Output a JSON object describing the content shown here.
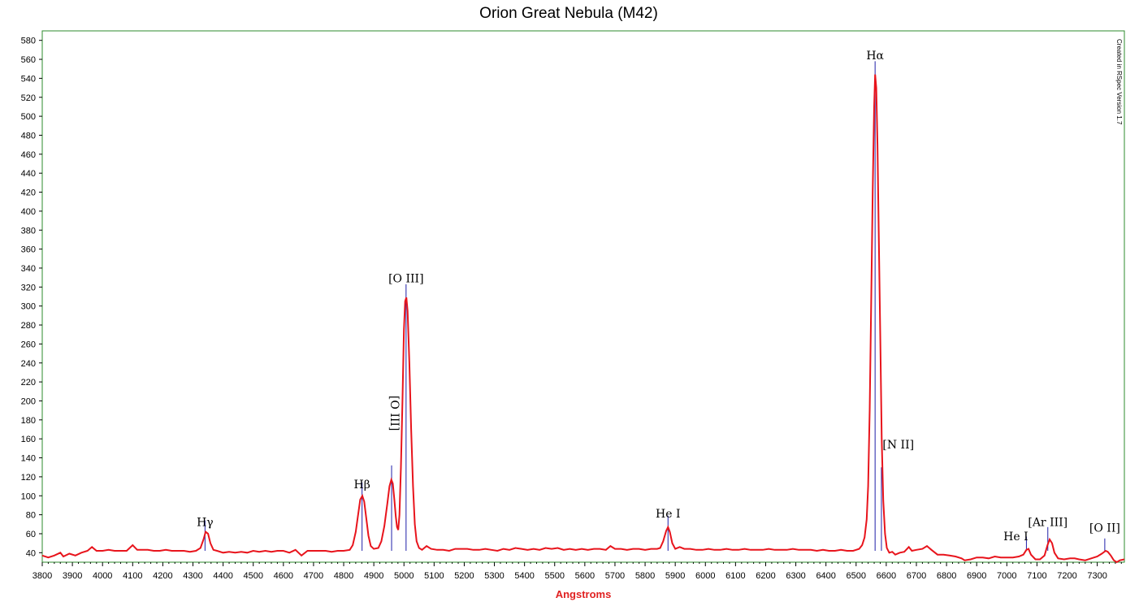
{
  "chart_data": {
    "type": "line",
    "title": "Orion Great Nebula (M42)",
    "xlabel": "Angstroms",
    "ylabel": "",
    "xlim": [
      3800,
      7390
    ],
    "ylim": [
      30,
      590
    ],
    "x_ticks": [
      3800,
      3900,
      4000,
      4100,
      4200,
      4300,
      4400,
      4500,
      4600,
      4700,
      4800,
      4900,
      5000,
      5100,
      5200,
      5300,
      5400,
      5500,
      5600,
      5700,
      5800,
      5900,
      6000,
      6100,
      6200,
      6300,
      6400,
      6500,
      6600,
      6700,
      6800,
      6900,
      7000,
      7100,
      7200,
      7300
    ],
    "y_ticks": [
      40,
      60,
      80,
      100,
      120,
      140,
      160,
      180,
      200,
      220,
      240,
      260,
      280,
      300,
      320,
      340,
      360,
      380,
      400,
      420,
      440,
      460,
      480,
      500,
      520,
      540,
      560,
      580
    ],
    "watermark": "Created in RSpec Version 1.7",
    "colors": {
      "spectrum": "#e8141c",
      "marker": "#1f1fa8",
      "frame": "#2e8b2e"
    },
    "series": [
      {
        "points": [
          [
            3800,
            37
          ],
          [
            3820,
            35
          ],
          [
            3840,
            37
          ],
          [
            3860,
            40
          ],
          [
            3870,
            36
          ],
          [
            3890,
            39
          ],
          [
            3910,
            37
          ],
          [
            3930,
            40
          ],
          [
            3950,
            42
          ],
          [
            3965,
            46
          ],
          [
            3980,
            42
          ],
          [
            4000,
            42
          ],
          [
            4020,
            43
          ],
          [
            4040,
            42
          ],
          [
            4060,
            42
          ],
          [
            4080,
            42
          ],
          [
            4100,
            48
          ],
          [
            4115,
            43
          ],
          [
            4130,
            43
          ],
          [
            4150,
            43
          ],
          [
            4170,
            42
          ],
          [
            4190,
            42
          ],
          [
            4210,
            43
          ],
          [
            4230,
            42
          ],
          [
            4250,
            42
          ],
          [
            4270,
            42
          ],
          [
            4290,
            41
          ],
          [
            4310,
            42
          ],
          [
            4325,
            45
          ],
          [
            4335,
            54
          ],
          [
            4342,
            62
          ],
          [
            4350,
            60
          ],
          [
            4358,
            50
          ],
          [
            4368,
            43
          ],
          [
            4380,
            42
          ],
          [
            4400,
            40
          ],
          [
            4420,
            41
          ],
          [
            4440,
            40
          ],
          [
            4460,
            41
          ],
          [
            4480,
            40
          ],
          [
            4500,
            42
          ],
          [
            4520,
            41
          ],
          [
            4540,
            42
          ],
          [
            4560,
            41
          ],
          [
            4580,
            42
          ],
          [
            4600,
            42
          ],
          [
            4620,
            40
          ],
          [
            4640,
            43
          ],
          [
            4660,
            37
          ],
          [
            4680,
            42
          ],
          [
            4700,
            42
          ],
          [
            4720,
            42
          ],
          [
            4740,
            42
          ],
          [
            4760,
            41
          ],
          [
            4780,
            42
          ],
          [
            4800,
            42
          ],
          [
            4820,
            43
          ],
          [
            4830,
            48
          ],
          [
            4840,
            62
          ],
          [
            4848,
            80
          ],
          [
            4855,
            96
          ],
          [
            4862,
            100
          ],
          [
            4868,
            94
          ],
          [
            4875,
            76
          ],
          [
            4882,
            58
          ],
          [
            4890,
            47
          ],
          [
            4900,
            44
          ],
          [
            4915,
            45
          ],
          [
            4925,
            52
          ],
          [
            4935,
            68
          ],
          [
            4945,
            92
          ],
          [
            4952,
            110
          ],
          [
            4958,
            117
          ],
          [
            4963,
            113
          ],
          [
            4968,
            96
          ],
          [
            4973,
            78
          ],
          [
            4977,
            67
          ],
          [
            4981,
            64
          ],
          [
            4985,
            80
          ],
          [
            4990,
            130
          ],
          [
            4995,
            200
          ],
          [
            5000,
            275
          ],
          [
            5004,
            305
          ],
          [
            5008,
            309
          ],
          [
            5012,
            295
          ],
          [
            5018,
            240
          ],
          [
            5024,
            170
          ],
          [
            5030,
            110
          ],
          [
            5036,
            70
          ],
          [
            5042,
            52
          ],
          [
            5050,
            45
          ],
          [
            5060,
            43
          ],
          [
            5075,
            47
          ],
          [
            5090,
            44
          ],
          [
            5110,
            43
          ],
          [
            5130,
            43
          ],
          [
            5150,
            42
          ],
          [
            5170,
            44
          ],
          [
            5190,
            44
          ],
          [
            5210,
            44
          ],
          [
            5230,
            43
          ],
          [
            5250,
            43
          ],
          [
            5270,
            44
          ],
          [
            5290,
            43
          ],
          [
            5310,
            42
          ],
          [
            5330,
            44
          ],
          [
            5350,
            43
          ],
          [
            5370,
            45
          ],
          [
            5390,
            44
          ],
          [
            5410,
            43
          ],
          [
            5430,
            44
          ],
          [
            5450,
            43
          ],
          [
            5470,
            45
          ],
          [
            5490,
            44
          ],
          [
            5510,
            45
          ],
          [
            5530,
            43
          ],
          [
            5550,
            44
          ],
          [
            5570,
            43
          ],
          [
            5590,
            44
          ],
          [
            5610,
            43
          ],
          [
            5630,
            44
          ],
          [
            5650,
            44
          ],
          [
            5670,
            43
          ],
          [
            5685,
            47
          ],
          [
            5700,
            44
          ],
          [
            5720,
            44
          ],
          [
            5740,
            43
          ],
          [
            5760,
            44
          ],
          [
            5780,
            44
          ],
          [
            5800,
            43
          ],
          [
            5820,
            44
          ],
          [
            5840,
            44
          ],
          [
            5850,
            45
          ],
          [
            5860,
            52
          ],
          [
            5870,
            63
          ],
          [
            5876,
            67
          ],
          [
            5882,
            62
          ],
          [
            5890,
            50
          ],
          [
            5900,
            44
          ],
          [
            5915,
            46
          ],
          [
            5930,
            44
          ],
          [
            5950,
            44
          ],
          [
            5970,
            43
          ],
          [
            5990,
            43
          ],
          [
            6010,
            44
          ],
          [
            6030,
            43
          ],
          [
            6050,
            43
          ],
          [
            6070,
            44
          ],
          [
            6090,
            43
          ],
          [
            6110,
            43
          ],
          [
            6130,
            44
          ],
          [
            6150,
            43
          ],
          [
            6170,
            43
          ],
          [
            6190,
            43
          ],
          [
            6210,
            44
          ],
          [
            6230,
            43
          ],
          [
            6250,
            43
          ],
          [
            6270,
            43
          ],
          [
            6290,
            44
          ],
          [
            6310,
            43
          ],
          [
            6330,
            43
          ],
          [
            6350,
            43
          ],
          [
            6370,
            42
          ],
          [
            6390,
            43
          ],
          [
            6410,
            42
          ],
          [
            6430,
            42
          ],
          [
            6450,
            43
          ],
          [
            6470,
            42
          ],
          [
            6490,
            42
          ],
          [
            6500,
            43
          ],
          [
            6510,
            44
          ],
          [
            6520,
            48
          ],
          [
            6528,
            56
          ],
          [
            6535,
            75
          ],
          [
            6540,
            110
          ],
          [
            6545,
            190
          ],
          [
            6550,
            300
          ],
          [
            6555,
            420
          ],
          [
            6560,
            510
          ],
          [
            6563,
            544
          ],
          [
            6567,
            530
          ],
          [
            6571,
            470
          ],
          [
            6575,
            380
          ],
          [
            6580,
            270
          ],
          [
            6585,
            160
          ],
          [
            6590,
            95
          ],
          [
            6596,
            60
          ],
          [
            6602,
            45
          ],
          [
            6610,
            40
          ],
          [
            6620,
            41
          ],
          [
            6630,
            38
          ],
          [
            6645,
            40
          ],
          [
            6660,
            41
          ],
          [
            6675,
            46
          ],
          [
            6685,
            42
          ],
          [
            6700,
            43
          ],
          [
            6720,
            44
          ],
          [
            6735,
            47
          ],
          [
            6750,
            43
          ],
          [
            6770,
            38
          ],
          [
            6790,
            38
          ],
          [
            6810,
            37
          ],
          [
            6830,
            36
          ],
          [
            6850,
            34
          ],
          [
            6860,
            32
          ],
          [
            6880,
            33
          ],
          [
            6900,
            35
          ],
          [
            6920,
            35
          ],
          [
            6940,
            34
          ],
          [
            6960,
            36
          ],
          [
            6980,
            35
          ],
          [
            7000,
            35
          ],
          [
            7020,
            35
          ],
          [
            7040,
            36
          ],
          [
            7055,
            38
          ],
          [
            7065,
            43
          ],
          [
            7072,
            44
          ],
          [
            7080,
            38
          ],
          [
            7095,
            33
          ],
          [
            7110,
            33
          ],
          [
            7125,
            37
          ],
          [
            7135,
            48
          ],
          [
            7142,
            54
          ],
          [
            7150,
            50
          ],
          [
            7158,
            40
          ],
          [
            7170,
            34
          ],
          [
            7190,
            33
          ],
          [
            7210,
            34
          ],
          [
            7225,
            34
          ],
          [
            7240,
            33
          ],
          [
            7260,
            32
          ],
          [
            7280,
            34
          ],
          [
            7300,
            36
          ],
          [
            7315,
            39
          ],
          [
            7328,
            42
          ],
          [
            7335,
            41
          ],
          [
            7345,
            37
          ],
          [
            7355,
            32
          ],
          [
            7365,
            30
          ],
          [
            7375,
            32
          ],
          [
            7390,
            33
          ]
        ]
      }
    ],
    "lines": [
      {
        "name": "Hγ",
        "wavelength": 4340,
        "top": 74,
        "label_y": 68,
        "label_x": 4340
      },
      {
        "name": "Hβ",
        "wavelength": 4861,
        "top": 114,
        "label_y": 108,
        "label_x": 4861
      },
      {
        "name": "[O III]",
        "wavelength": 4959,
        "top": 132,
        "label_y": 187,
        "label_x": 4943,
        "vertical": true
      },
      {
        "name": "[O III]",
        "wavelength": 5007,
        "top": 323,
        "label_y": 325,
        "label_x": 5007
      },
      {
        "name": "He I",
        "wavelength": 5876,
        "top": 79,
        "label_y": 77,
        "label_x": 5876
      },
      {
        "name": "Hα",
        "wavelength": 6563,
        "top": 558,
        "label_y": 560,
        "label_x": 6563
      },
      {
        "name": "[N II]",
        "wavelength": 6584,
        "top": 130,
        "label_y": 150,
        "label_x": 6640
      },
      {
        "name": "He I",
        "wavelength": 7065,
        "top": 57,
        "label_y": 53,
        "label_x": 7030
      },
      {
        "name": "[Ar III]",
        "wavelength": 7136,
        "top": 67,
        "label_y": 68,
        "label_x": 7136
      },
      {
        "name": "[O II]",
        "wavelength": 7325,
        "top": 55,
        "label_y": 62,
        "label_x": 7325
      }
    ]
  }
}
